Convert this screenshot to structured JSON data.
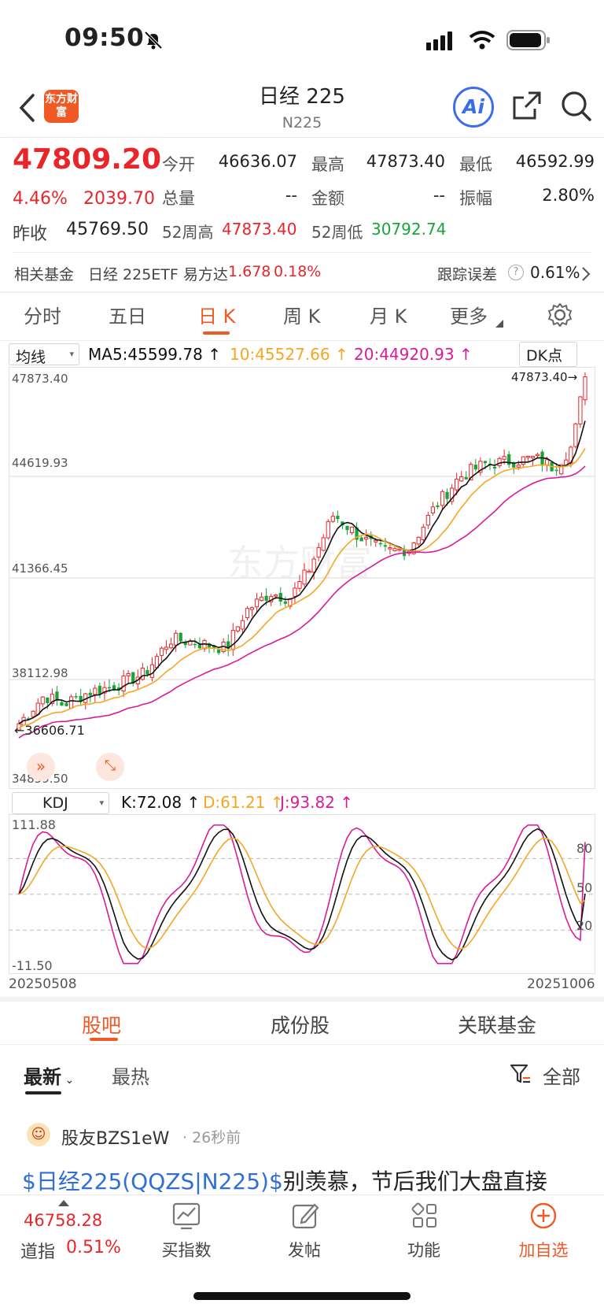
{
  "status_bar": {
    "time": "09:50"
  },
  "nav": {
    "title": "日经 225",
    "subtitle": "N225",
    "logo_text": "东方财富",
    "ai_label": "Ai"
  },
  "quote": {
    "price": "47809.20",
    "change_pct": "4.46%",
    "change_abs": "2039.70",
    "prev_close_label": "昨收",
    "prev_close": "45769.50",
    "open_label": "今开",
    "open": "46636.07",
    "high_label": "最高",
    "high": "47873.40",
    "low_label": "最低",
    "low": "46592.99",
    "volume_label": "总量",
    "volume": "--",
    "amount_label": "金额",
    "amount": "--",
    "amplitude_label": "振幅",
    "amplitude": "2.80%",
    "w52_high_label": "52周高",
    "w52_high": "47873.40",
    "w52_low_label": "52周低",
    "w52_low": "30792.74"
  },
  "fund": {
    "label": "相关基金",
    "name": "日经 225ETF 易方达",
    "price": "1.678",
    "pct": "0.18%",
    "tracking_label": "跟踪误差",
    "tracking_value": "0.61%"
  },
  "period_tabs": [
    "分时",
    "五日",
    "日 K",
    "周 K",
    "月 K",
    "更多"
  ],
  "active_period": "日 K",
  "ma": {
    "selector": "均线",
    "ma5": "MA5:45599.78",
    "ma10": "10:45527.66",
    "ma20": "20:44920.93",
    "dk_label": "DK点"
  },
  "price_axis": [
    "47873.40",
    "44619.93",
    "41366.45",
    "38112.98",
    "34859.50"
  ],
  "max_marker": "47873.40",
  "min_marker": "36606.71",
  "kdj": {
    "selector": "KDJ",
    "k": "K:72.08",
    "d": "D:61.21",
    "j": "J:93.82",
    "axis_top": "111.88",
    "axis_bottom": "-11.50",
    "ref_levels": [
      "80",
      "50",
      "20"
    ]
  },
  "dates": {
    "start": "20250508",
    "end": "20251006"
  },
  "section_tabs": [
    "股吧",
    "成份股",
    "关联基金"
  ],
  "feed_tabs": {
    "latest": "最新",
    "hot": "最热",
    "filter": "全部"
  },
  "post": {
    "user": "股友BZS1eW",
    "time": "· 26秒前",
    "link": "$日经225(QQZS|N225)$",
    "text": "别羡慕，节后我们大盘直接"
  },
  "bottom_bar": {
    "dow_price": "46758.28",
    "dow_label": "道指",
    "dow_pct": "0.51%",
    "items": [
      "买指数",
      "发帖",
      "功能",
      "加自选"
    ]
  },
  "colors": {
    "up": "#e8262a",
    "down": "#17a53a",
    "accent": "#ef5a24",
    "ma5": "#111111",
    "ma10": "#f5a623",
    "ma20": "#d81b9a"
  }
}
